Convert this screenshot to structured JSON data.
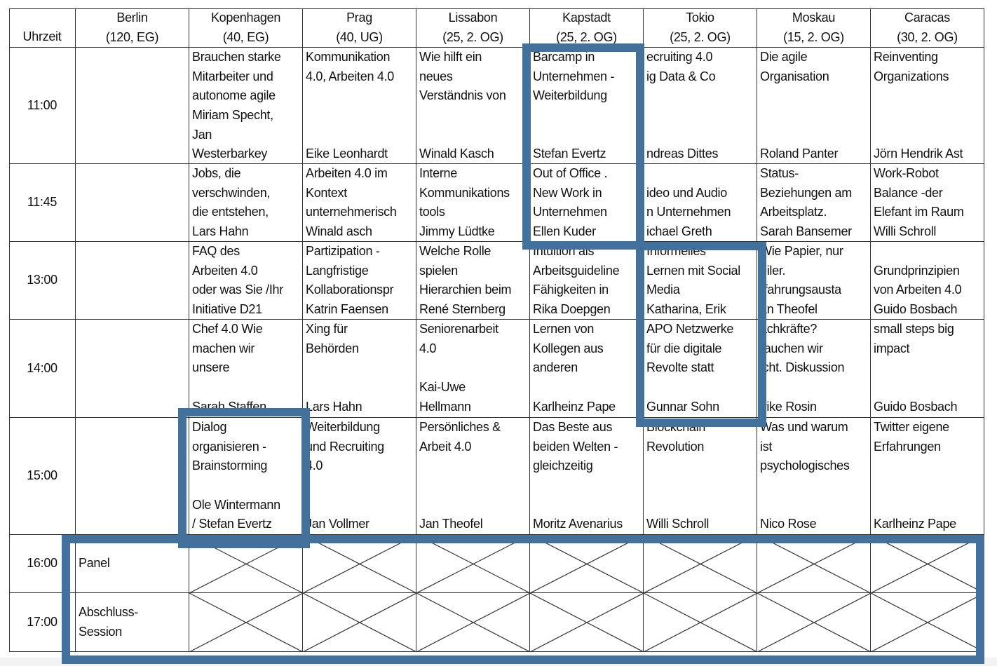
{
  "header": {
    "time_label": "Uhrzeit",
    "columns": [
      {
        "name": "Berlin",
        "sub": "(120, EG)"
      },
      {
        "name": "Kopenhagen",
        "sub": "(40, EG)"
      },
      {
        "name": "Prag",
        "sub": "(40, UG)"
      },
      {
        "name": "Lissabon",
        "sub": "(25, 2. OG)"
      },
      {
        "name": "Kapstadt",
        "sub": "(25, 2. OG)"
      },
      {
        "name": "Tokio",
        "sub": "(25, 2. OG)"
      },
      {
        "name": "Moskau",
        "sub": "(15, 2. OG)"
      },
      {
        "name": "Caracas",
        "sub": "(30, 2. OG)"
      }
    ]
  },
  "rows": [
    {
      "time": "11:00",
      "cells": [
        [],
        [
          "Brauchen starke",
          "Mitarbeiter und",
          "autonome agile",
          "Miriam Specht,",
          "Jan",
          "Westerbarkey"
        ],
        [
          "Kommunikation",
          "4.0, Arbeiten 4.0",
          "",
          "",
          "",
          "Eike Leonhardt"
        ],
        [
          "Wie hilft ein",
          "neues",
          "Verständnis von",
          "",
          "",
          "Winald Kasch"
        ],
        [
          "Barcamp in",
          "Unternehmen -",
          "Weiterbildung",
          "",
          "",
          "Stefan Evertz"
        ],
        [
          "ecruiting 4.0",
          "ig Data & Co",
          "",
          "",
          "",
          "ndreas Dittes"
        ],
        [
          "Die agile",
          "Organisation",
          "",
          "",
          "",
          "Roland Panter"
        ],
        [
          "Reinventing",
          "Organizations",
          "",
          "",
          "",
          "Jörn Hendrik Ast"
        ]
      ]
    },
    {
      "time": "11:45",
      "cells": [
        [],
        [
          "Jobs, die",
          "verschwinden,",
          "die entstehen,",
          "Lars Hahn"
        ],
        [
          "Arbeiten 4.0 im",
          "Kontext",
          "unternehmerisch",
          "Winald asch"
        ],
        [
          "Interne",
          "Kommunikations",
          "tools",
          "Jimmy Lüdtke"
        ],
        [
          "Out of Office .",
          "New Work in",
          "Unternehmen",
          "Ellen Kuder"
        ],
        [
          "",
          "ideo und Audio",
          "n Unternehmen",
          "ichael Greth"
        ],
        [
          "Status-",
          "Beziehungen am",
          "Arbeitsplatz.",
          "Sarah Bansemer"
        ],
        [
          "Work-Robot",
          "Balance -der",
          "Elefant im Raum",
          "Willi Schroll"
        ]
      ]
    },
    {
      "time": "13:00",
      "cells": [
        [],
        [
          "FAQ des",
          "Arbeiten 4.0",
          "oder was Sie /Ihr",
          "Initiative D21"
        ],
        [
          "Partizipation -",
          "Langfristige",
          "Kollaborationspr",
          "Katrin Faensen"
        ],
        [
          "Welche Rolle",
          "spielen",
          "Hierarchien beim",
          "René Sternberg"
        ],
        [
          "Intuition als",
          "Arbeitsguideline",
          "Fähigkeiten in",
          "Rika Doepgen"
        ],
        [
          "Informelles",
          "Lernen mit Social",
          "Media",
          "Katharina, Erik"
        ],
        [
          "Wie Papier, nur",
          "eiler.",
          "rfahrungsausta",
          "an Theofel"
        ],
        [
          "",
          "Grundprinzipien",
          "von Arbeiten 4.0",
          "Guido Bosbach"
        ]
      ]
    },
    {
      "time": "14:00",
      "cells": [
        [],
        [
          "Chef 4.0 Wie",
          "machen wir",
          "unsere",
          "",
          "Sarah Staffen"
        ],
        [
          "Xing für",
          "Behörden",
          "",
          "",
          "Lars Hahn"
        ],
        [
          "Seniorenarbeit",
          "4.0",
          "",
          "Kai-Uwe",
          "Hellmann"
        ],
        [
          "Lernen von",
          "Kollegen aus",
          "anderen",
          "",
          "Karlheinz Pape"
        ],
        [
          "APO Netzwerke",
          "für die digitale",
          "Revolte statt",
          "",
          "Gunnar Sohn"
        ],
        [
          "achkräfte?",
          "rauchen wir",
          "icht. Diskussion",
          "",
          "lrike Rosin"
        ],
        [
          "small steps big",
          "impact",
          "",
          "",
          "Guido Bosbach"
        ]
      ]
    },
    {
      "time": "15:00",
      "cells": [
        [],
        [
          "Dialog",
          "organisieren -",
          "Brainstorming",
          "",
          "Ole Wintermann",
          "/ Stefan Evertz"
        ],
        [
          "Weiterbildung",
          "und Recruiting",
          "4.0",
          "",
          "",
          "Jan Vollmer"
        ],
        [
          "Persönliches &",
          "Arbeit 4.0",
          "",
          "",
          "",
          "Jan Theofel"
        ],
        [
          "Das Beste aus",
          "beiden Welten -",
          "gleichzeitig",
          "",
          "",
          "Moritz Avenarius"
        ],
        [
          "Blockchain",
          "Revolution",
          "",
          "",
          "",
          "Willi Schroll"
        ],
        [
          "Was und warum",
          "ist",
          "psychologisches",
          "",
          "",
          "Nico Rose"
        ],
        [
          "Twitter eigene",
          "Erfahrungen",
          "",
          "",
          "",
          "Karlheinz Pape"
        ]
      ]
    }
  ],
  "plenary_rows": [
    {
      "time": "16:00",
      "label": [
        "Panel"
      ]
    },
    {
      "time": "17:00",
      "label": [
        "Abschluss-",
        "Session"
      ]
    }
  ],
  "highlight_color": "#44709c",
  "crossed_cell_icon": "x-cross"
}
